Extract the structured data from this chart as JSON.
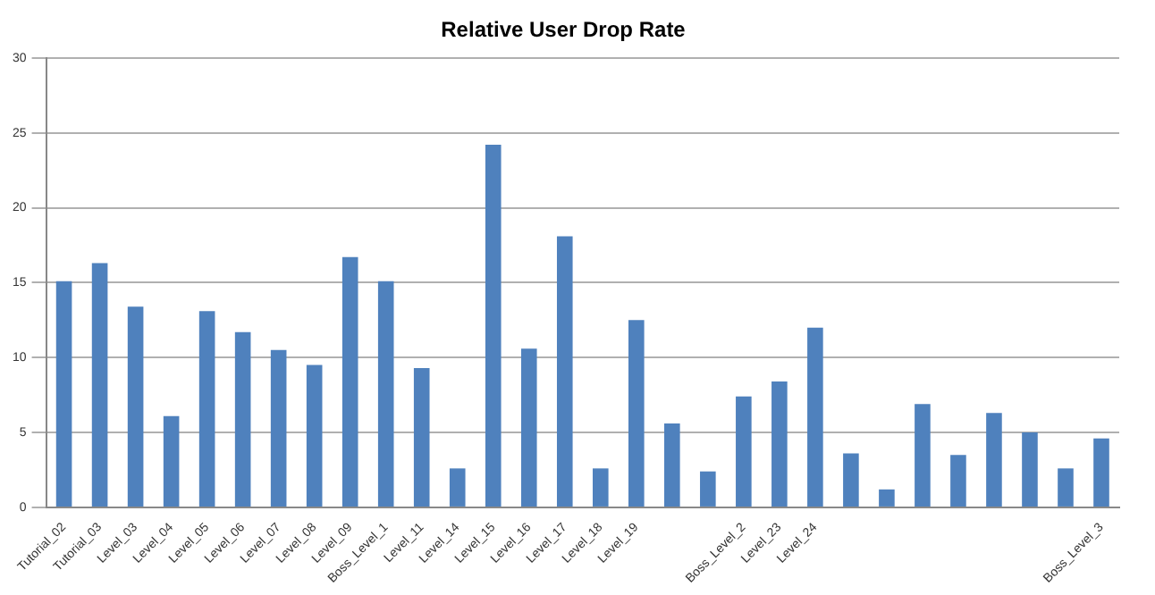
{
  "chart_data": {
    "type": "bar",
    "title": "Relative User Drop Rate",
    "categories": [
      "Tutorial_02",
      "Tutorial_03",
      "Level_03",
      "Level_04",
      "Level_05",
      "Level_06",
      "Level_07",
      "Level_08",
      "Level_09",
      "Boss_Level_1",
      "Level_11",
      "Level_14",
      "Level_15",
      "Level_16",
      "Level_17",
      "Level_18",
      "Level_19",
      null,
      null,
      "Boss_Level_2",
      "Level_23",
      "Level_24",
      null,
      null,
      null,
      null,
      null,
      null,
      null,
      "Boss_Level_3"
    ],
    "values": [
      15.1,
      16.3,
      13.4,
      6.1,
      13.1,
      11.7,
      10.5,
      9.5,
      16.7,
      15.1,
      9.3,
      2.6,
      24.2,
      10.6,
      18.1,
      2.6,
      12.5,
      5.6,
      2.4,
      7.4,
      8.4,
      12.0,
      3.6,
      1.2,
      6.9,
      3.5,
      6.3,
      5.0,
      2.6,
      4.6
    ],
    "color": "#4f81bd",
    "ylim": [
      0,
      30
    ],
    "yticks": [
      0,
      5,
      10,
      15,
      20,
      25,
      30
    ],
    "grid": "y"
  }
}
